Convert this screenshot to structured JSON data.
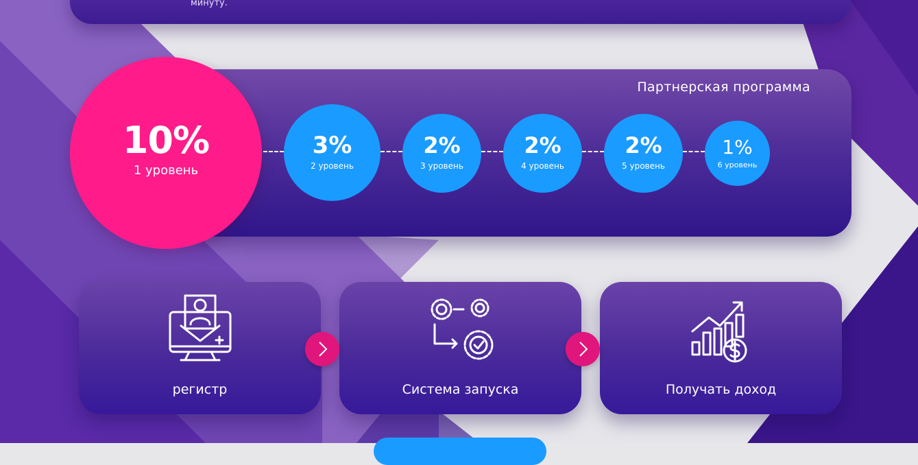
{
  "top_card": {
    "snippet": "минуту."
  },
  "partner_program": {
    "title": "Партнерская программа",
    "levels": [
      {
        "percent": "10%",
        "label": "1 уровень"
      },
      {
        "percent": "3%",
        "label": "2 уровень"
      },
      {
        "percent": "2%",
        "label": "3 уровень"
      },
      {
        "percent": "2%",
        "label": "4 уровень"
      },
      {
        "percent": "2%",
        "label": "5 уровень"
      },
      {
        "percent": "1%",
        "label": "6 уровень"
      }
    ]
  },
  "steps": [
    {
      "label": "регистр",
      "icon": "computer-user-icon"
    },
    {
      "label": "Система запуска",
      "icon": "gears-process-icon"
    },
    {
      "label": "Получать доход",
      "icon": "growth-chart-dollar-icon"
    }
  ],
  "colors": {
    "accent_pink": "#ff1c8a",
    "accent_blue": "#1a9bff",
    "card_purple": "#4a2a97",
    "arrow_pink": "#e0167d"
  }
}
